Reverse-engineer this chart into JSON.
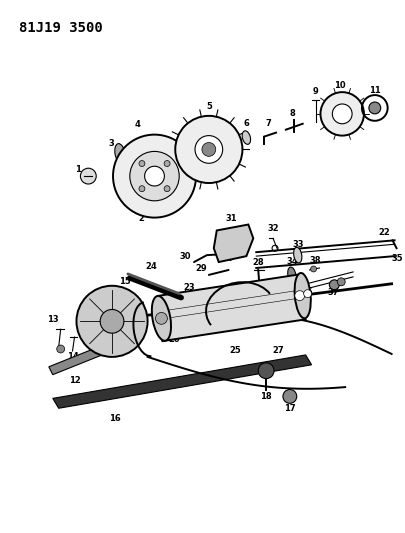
{
  "title": "81J19 3500",
  "bg_color": "#ffffff",
  "fig_width": 4.06,
  "fig_height": 5.33,
  "dpi": 100,
  "label_fontsize": 6.0,
  "title_fontsize": 10,
  "title_fontweight": "bold"
}
